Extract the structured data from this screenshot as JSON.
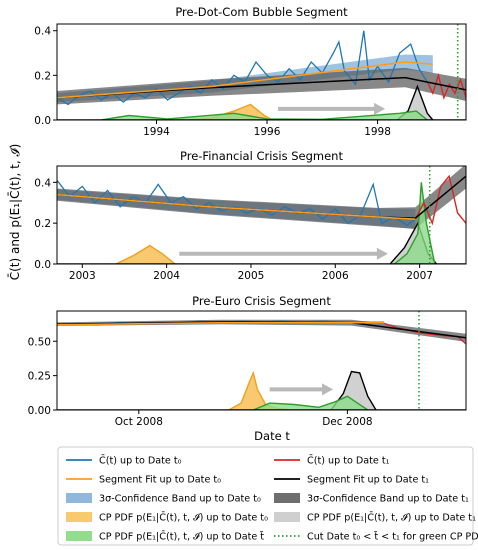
{
  "figure": {
    "ylabel": "C̄(t) and p(E₁|C̄(t), t, 𝓘)",
    "xlabel": "Date t"
  },
  "chart_data": [
    {
      "type": "line",
      "title": "Pre-Dot-Com Bubble Segment",
      "xlim": [
        1992.2,
        1999.6
      ],
      "ylim": [
        0,
        0.43
      ],
      "xticks": [
        1994,
        1996,
        1998
      ],
      "xticklabels": [
        "1994",
        "1996",
        "1998"
      ],
      "yticks": [
        0.0,
        0.2,
        0.4
      ],
      "yticklabels": [
        "0.0",
        "0.2",
        "0.4"
      ],
      "cut_date": 1999.45,
      "series": {
        "c_t0": [
          [
            1992.2,
            0.1
          ],
          [
            1992.4,
            0.07
          ],
          [
            1992.6,
            0.11
          ],
          [
            1992.8,
            0.13
          ],
          [
            1993.0,
            0.09
          ],
          [
            1993.2,
            0.12
          ],
          [
            1993.4,
            0.08
          ],
          [
            1993.6,
            0.12
          ],
          [
            1993.8,
            0.1
          ],
          [
            1994.0,
            0.14
          ],
          [
            1994.2,
            0.09
          ],
          [
            1994.4,
            0.12
          ],
          [
            1994.6,
            0.15
          ],
          [
            1994.8,
            0.12
          ],
          [
            1995.0,
            0.18
          ],
          [
            1995.2,
            0.14
          ],
          [
            1995.4,
            0.2
          ],
          [
            1995.6,
            0.17
          ],
          [
            1995.8,
            0.26
          ],
          [
            1996.0,
            0.2
          ],
          [
            1996.2,
            0.17
          ],
          [
            1996.4,
            0.23
          ],
          [
            1996.6,
            0.18
          ],
          [
            1996.8,
            0.26
          ],
          [
            1997.0,
            0.21
          ],
          [
            1997.2,
            0.3
          ],
          [
            1997.3,
            0.35
          ],
          [
            1997.4,
            0.22
          ],
          [
            1997.6,
            0.16
          ],
          [
            1997.75,
            0.4
          ],
          [
            1997.85,
            0.18
          ],
          [
            1998.0,
            0.24
          ],
          [
            1998.2,
            0.17
          ],
          [
            1998.4,
            0.3
          ],
          [
            1998.6,
            0.34
          ],
          [
            1998.75,
            0.23
          ],
          [
            1998.9,
            0.17
          ]
        ],
        "c_t1": [
          [
            1998.9,
            0.17
          ],
          [
            1999.0,
            0.12
          ],
          [
            1999.1,
            0.2
          ],
          [
            1999.2,
            0.1
          ],
          [
            1999.3,
            0.16
          ],
          [
            1999.4,
            0.12
          ],
          [
            1999.5,
            0.18
          ],
          [
            1999.6,
            0.1
          ]
        ],
        "fit_t0": [
          [
            1992.2,
            0.1
          ],
          [
            1995.0,
            0.15
          ],
          [
            1998.5,
            0.26
          ],
          [
            1999.0,
            0.25
          ]
        ],
        "fit_t1": [
          [
            1992.2,
            0.1
          ],
          [
            1995.0,
            0.145
          ],
          [
            1998.5,
            0.19
          ],
          [
            1999.6,
            0.135
          ]
        ],
        "cp_pdf_t0": [
          [
            1994.6,
            0
          ],
          [
            1995.0,
            0.01
          ],
          [
            1995.4,
            0.04
          ],
          [
            1995.7,
            0.07
          ],
          [
            1995.95,
            0.02
          ],
          [
            1996.1,
            0
          ]
        ],
        "cp_pdf_t1": [
          [
            1998.35,
            0
          ],
          [
            1998.55,
            0.04
          ],
          [
            1998.72,
            0.15
          ],
          [
            1998.9,
            0.03
          ],
          [
            1999.0,
            0
          ]
        ],
        "cp_pdf_green": [
          [
            1993.0,
            0
          ],
          [
            1993.5,
            0.02
          ],
          [
            1994.2,
            0.005
          ],
          [
            1995.4,
            0.03
          ],
          [
            1996.0,
            0.005
          ],
          [
            1997.0,
            0.003
          ],
          [
            1998.4,
            0.03
          ],
          [
            1998.7,
            0.04
          ],
          [
            1998.9,
            0
          ]
        ]
      },
      "band_t0_halfwidth": [
        0.02,
        0.04
      ],
      "band_t1_halfwidth": [
        0.03,
        0.05
      ],
      "arrow_x": [
        1996.2,
        1998.1
      ],
      "arrow_y": 0.05
    },
    {
      "type": "line",
      "title": "Pre-Financial Crisis Segment",
      "xlim": [
        2002.7,
        2007.55
      ],
      "ylim": [
        0,
        0.48
      ],
      "xticks": [
        2003,
        2004,
        2005,
        2006,
        2007
      ],
      "xticklabels": [
        "2003",
        "2004",
        "2005",
        "2006",
        "2007"
      ],
      "yticks": [
        0.0,
        0.2,
        0.4
      ],
      "yticklabels": [
        "0.0",
        "0.2",
        "0.4"
      ],
      "cut_date": 2007.12,
      "series": {
        "c_t0": [
          [
            2002.7,
            0.41
          ],
          [
            2002.85,
            0.33
          ],
          [
            2003.0,
            0.38
          ],
          [
            2003.15,
            0.3
          ],
          [
            2003.3,
            0.36
          ],
          [
            2003.45,
            0.28
          ],
          [
            2003.6,
            0.33
          ],
          [
            2003.75,
            0.3
          ],
          [
            2003.9,
            0.39
          ],
          [
            2004.05,
            0.3
          ],
          [
            2004.2,
            0.33
          ],
          [
            2004.35,
            0.27
          ],
          [
            2004.5,
            0.3
          ],
          [
            2004.65,
            0.26
          ],
          [
            2004.8,
            0.28
          ],
          [
            2004.95,
            0.25
          ],
          [
            2005.1,
            0.27
          ],
          [
            2005.25,
            0.24
          ],
          [
            2005.4,
            0.28
          ],
          [
            2005.55,
            0.25
          ],
          [
            2005.7,
            0.27
          ],
          [
            2005.85,
            0.22
          ],
          [
            2006.0,
            0.27
          ],
          [
            2006.15,
            0.2
          ],
          [
            2006.3,
            0.24
          ],
          [
            2006.45,
            0.39
          ],
          [
            2006.55,
            0.2
          ],
          [
            2006.7,
            0.23
          ],
          [
            2006.85,
            0.19
          ],
          [
            2006.95,
            0.22
          ]
        ],
        "c_t1": [
          [
            2006.95,
            0.22
          ],
          [
            2007.05,
            0.3
          ],
          [
            2007.15,
            0.2
          ],
          [
            2007.25,
            0.38
          ],
          [
            2007.35,
            0.43
          ],
          [
            2007.45,
            0.25
          ],
          [
            2007.55,
            0.2
          ]
        ],
        "fit_t0": [
          [
            2002.7,
            0.34
          ],
          [
            2004.5,
            0.28
          ],
          [
            2006.5,
            0.23
          ],
          [
            2006.95,
            0.22
          ]
        ],
        "fit_t1": [
          [
            2002.7,
            0.34
          ],
          [
            2004.5,
            0.28
          ],
          [
            2006.5,
            0.23
          ],
          [
            2006.95,
            0.225
          ],
          [
            2007.55,
            0.43
          ]
        ],
        "cp_pdf_t0": [
          [
            2003.4,
            0
          ],
          [
            2003.6,
            0.04
          ],
          [
            2003.8,
            0.09
          ],
          [
            2003.95,
            0.05
          ],
          [
            2004.1,
            0
          ]
        ],
        "cp_pdf_t1": [
          [
            2006.65,
            0
          ],
          [
            2006.82,
            0.08
          ],
          [
            2006.98,
            0.2
          ],
          [
            2007.1,
            0.05
          ],
          [
            2007.2,
            0
          ]
        ],
        "cp_pdf_green": [
          [
            2006.7,
            0
          ],
          [
            2006.85,
            0.05
          ],
          [
            2006.98,
            0.15
          ],
          [
            2007.02,
            0.4
          ],
          [
            2007.08,
            0.2
          ],
          [
            2007.13,
            0.1
          ],
          [
            2007.18,
            0
          ]
        ]
      },
      "band_t0_halfwidth": [
        0.025,
        0.05
      ],
      "band_t1_halfwidth": [
        0.03,
        0.06
      ],
      "arrow_x": [
        2004.15,
        2006.6
      ],
      "arrow_y": 0.05
    },
    {
      "type": "line",
      "title": "Pre-Euro Crisis Segment",
      "xlim": [
        0,
        100
      ],
      "ylim": [
        0,
        0.72
      ],
      "xticks": [
        20,
        71
      ],
      "xticklabels": [
        "Oct 2008",
        "Dec 2008"
      ],
      "yticks": [
        0.0,
        0.25,
        0.5
      ],
      "yticklabels": [
        "0.00",
        "0.25",
        "0.50"
      ],
      "cut_date": 88.5,
      "series": {
        "c_t0": [
          [
            0,
            0.62
          ],
          [
            5,
            0.63
          ],
          [
            10,
            0.62
          ],
          [
            15,
            0.635
          ],
          [
            20,
            0.63
          ],
          [
            25,
            0.64
          ],
          [
            30,
            0.635
          ],
          [
            35,
            0.645
          ],
          [
            40,
            0.635
          ],
          [
            45,
            0.645
          ],
          [
            50,
            0.64
          ],
          [
            55,
            0.645
          ],
          [
            60,
            0.64
          ],
          [
            65,
            0.645
          ],
          [
            70,
            0.64
          ],
          [
            75,
            0.635
          ],
          [
            80,
            0.63
          ]
        ],
        "c_t1": [
          [
            80,
            0.63
          ],
          [
            83,
            0.6
          ],
          [
            86,
            0.58
          ],
          [
            89,
            0.56
          ],
          [
            92,
            0.55
          ],
          [
            95,
            0.54
          ],
          [
            98,
            0.535
          ],
          [
            100,
            0.48
          ]
        ],
        "fit_t0": [
          [
            0,
            0.62
          ],
          [
            40,
            0.635
          ],
          [
            80,
            0.635
          ]
        ],
        "fit_t1": [
          [
            0,
            0.625
          ],
          [
            40,
            0.64
          ],
          [
            72,
            0.635
          ],
          [
            85,
            0.585
          ],
          [
            100,
            0.525
          ]
        ],
        "cp_pdf_t0": [
          [
            42,
            0
          ],
          [
            45,
            0.05
          ],
          [
            47,
            0.2
          ],
          [
            48,
            0.27
          ],
          [
            49,
            0.15
          ],
          [
            51,
            0.04
          ],
          [
            54,
            0.01
          ],
          [
            57,
            0
          ]
        ],
        "cp_pdf_t1": [
          [
            67,
            0
          ],
          [
            70,
            0.12
          ],
          [
            72,
            0.28
          ],
          [
            74,
            0.27
          ],
          [
            76,
            0.1
          ],
          [
            78,
            0
          ]
        ],
        "cp_pdf_green": [
          [
            48,
            0
          ],
          [
            52,
            0.05
          ],
          [
            58,
            0.04
          ],
          [
            64,
            0.02
          ],
          [
            68,
            0.06
          ],
          [
            71,
            0.1
          ],
          [
            73,
            0.06
          ],
          [
            76,
            0
          ]
        ]
      },
      "band_t0_halfwidth": [
        0.01,
        0.012
      ],
      "band_t1_halfwidth": [
        0.012,
        0.03
      ],
      "arrow_x": [
        52,
        67
      ],
      "arrow_y": 0.15
    }
  ],
  "legend": {
    "items": [
      {
        "key": "c_t0",
        "label": "C̄(t)  up to Date t₀",
        "kind": "line",
        "color": "#1f77b4"
      },
      {
        "key": "c_t1",
        "label": "C̄(t) up to Date t₁",
        "kind": "line",
        "color": "#d62728"
      },
      {
        "key": "fit_t0",
        "label": "Segment Fit up to Date t₀",
        "kind": "line",
        "color": "#ff9e1b"
      },
      {
        "key": "fit_t1",
        "label": "Segment Fit up to Date t₁",
        "kind": "line",
        "color": "#000000"
      },
      {
        "key": "band_t0",
        "label": "3σ-Confidence Band up to Date t₀",
        "kind": "patch",
        "color": "#8fb8dc"
      },
      {
        "key": "band_t1",
        "label": "3σ-Confidence Band up to Date t₁",
        "kind": "patch",
        "color": "#6e6e6e"
      },
      {
        "key": "cp_pdf_t0",
        "label": "CP PDF p(E₁|C̄(t), t, 𝓘) up to Date t₀",
        "kind": "patch",
        "color": "#f9c96e"
      },
      {
        "key": "cp_pdf_t1",
        "label": "CP PDF p(E₁|C̄(t), t, 𝓘) up to Date t₁",
        "kind": "patch",
        "color": "#cfcfcf"
      },
      {
        "key": "cp_pdf_green",
        "label": "CP PDF p(E₁|C̄(t), t, 𝓘) up to Date t̃",
        "kind": "patch",
        "color": "#92de8e"
      },
      {
        "key": "cut",
        "label": "Cut Date t₀ < t̃ < t₁ for green CP PDF",
        "kind": "dotted",
        "color": "#2ca02c"
      }
    ]
  },
  "colors": {
    "c_t0": "#1f77b4",
    "c_t1": "#d62728",
    "fit_t0": "#ff9e1b",
    "fit_t1": "#000000",
    "band_t0": "#7faed6",
    "band_t1": "#555555",
    "pdf_t0_fill": "#f7c35f",
    "pdf_t0_line": "#f0a020",
    "pdf_t1_fill": "#cccccc",
    "pdf_t1_line": "#000000",
    "pdf_green_fill": "#8ddb89",
    "pdf_green_line": "#2ca02c",
    "arrow": "#b8b8b8",
    "cut": "#2ca02c"
  }
}
